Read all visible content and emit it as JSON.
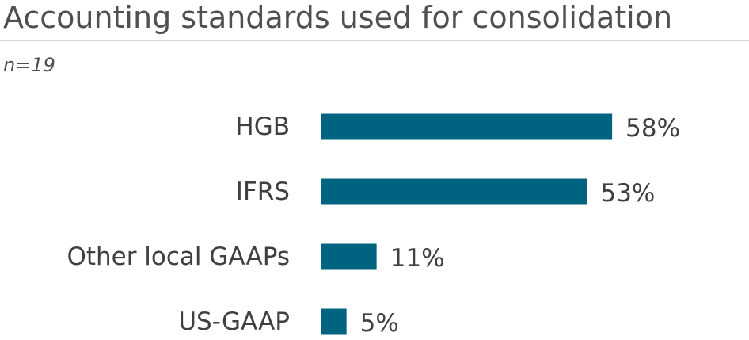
{
  "chart_data": {
    "type": "bar",
    "orientation": "horizontal",
    "title": "Accounting standards used for consolidation",
    "subtitle": "n=19",
    "categories": [
      "HGB",
      "IFRS",
      "Other local GAAPs",
      "US-GAAP"
    ],
    "values": [
      58,
      53,
      11,
      5
    ],
    "value_labels": [
      "58%",
      "53%",
      "11%",
      "5%"
    ],
    "unit": "%",
    "xlim": [
      0,
      100
    ],
    "bar_color": "#006481",
    "grid": false,
    "legend": "none"
  }
}
